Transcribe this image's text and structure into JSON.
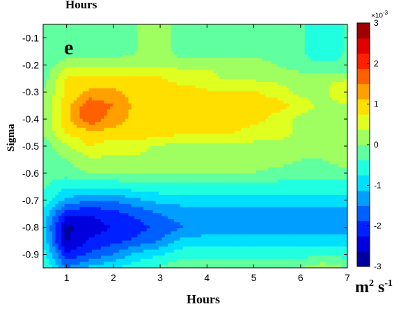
{
  "titles": {
    "top": "Hours",
    "panel_letter": "e"
  },
  "units": {
    "base": "m",
    "exp1": "2",
    "mid": " s",
    "exp2": "-1"
  },
  "colorbar": {
    "exponent_prefix": "×10",
    "exponent": "-3",
    "ticks": [
      "3",
      "2",
      "1",
      "0",
      "-1",
      "-2",
      "-3"
    ],
    "range": [
      -3,
      3
    ]
  },
  "chart_data": {
    "type": "heatmap",
    "xlabel": "Hours",
    "ylabel": "Sigma",
    "xlim": [
      0.5,
      7
    ],
    "ylim": [
      -0.95,
      -0.05
    ],
    "x_ticks": [
      "1",
      "2",
      "3",
      "4",
      "5",
      "6",
      "7"
    ],
    "y_ticks": [
      "-0.1",
      "-0.2",
      "-0.3",
      "-0.4",
      "-0.5",
      "-0.6",
      "-0.7",
      "-0.8",
      "-0.9"
    ],
    "x": [
      0.5,
      1,
      1.5,
      2,
      2.5,
      3,
      3.5,
      4,
      4.5,
      5,
      5.5,
      6,
      6.5,
      7
    ],
    "y": [
      -0.05,
      -0.1,
      -0.15,
      -0.2,
      -0.25,
      -0.3,
      -0.35,
      -0.4,
      -0.45,
      -0.5,
      -0.55,
      -0.6,
      -0.65,
      -0.7,
      -0.75,
      -0.8,
      -0.85,
      -0.9,
      -0.95
    ],
    "z_scale": "×10^-3",
    "z": [
      [
        -0.3,
        -0.3,
        -0.3,
        -0.3,
        0.0,
        0.3,
        -0.3,
        -0.3,
        -0.3,
        -0.3,
        -0.3,
        -0.3,
        -0.7,
        -0.3
      ],
      [
        -0.3,
        -0.3,
        -0.3,
        -0.3,
        0.0,
        0.3,
        -0.3,
        -0.3,
        -0.3,
        -0.3,
        -0.3,
        -0.3,
        -0.7,
        -0.3
      ],
      [
        -0.3,
        -0.3,
        -0.3,
        -0.3,
        0.0,
        0.3,
        -0.3,
        -0.3,
        -0.3,
        -0.3,
        -0.3,
        -0.3,
        -0.7,
        -0.3
      ],
      [
        -0.3,
        0.3,
        0.3,
        0.3,
        0.3,
        0.3,
        0.3,
        0.3,
        0.3,
        0.3,
        0.0,
        -0.3,
        -0.3,
        -0.3
      ],
      [
        -0.2,
        0.8,
        0.8,
        0.8,
        0.8,
        0.8,
        0.5,
        0.5,
        0.3,
        0.3,
        0.3,
        0.3,
        0.3,
        0.3
      ],
      [
        0.0,
        0.8,
        1.2,
        1.2,
        1.0,
        1.0,
        1.0,
        0.8,
        0.8,
        0.8,
        0.5,
        0.3,
        0.3,
        0.8
      ],
      [
        0.0,
        1.0,
        1.8,
        1.5,
        1.0,
        1.0,
        1.0,
        1.0,
        1.0,
        1.0,
        1.0,
        0.5,
        0.3,
        0.3
      ],
      [
        0.0,
        1.0,
        1.8,
        1.3,
        1.0,
        1.0,
        1.0,
        1.0,
        1.0,
        1.0,
        0.5,
        0.3,
        0.3,
        0.3
      ],
      [
        0.0,
        0.8,
        1.0,
        1.0,
        1.0,
        1.0,
        0.8,
        0.8,
        0.8,
        0.5,
        0.5,
        0.3,
        0.3,
        0.3
      ],
      [
        -0.2,
        0.3,
        0.8,
        0.5,
        0.5,
        0.3,
        0.3,
        0.3,
        0.3,
        0.3,
        0.3,
        0.3,
        0.3,
        0.3
      ],
      [
        -0.3,
        0.0,
        0.3,
        0.3,
        0.3,
        0.3,
        0.3,
        0.3,
        0.3,
        0.3,
        0.3,
        0.0,
        0.0,
        0.3
      ],
      [
        -0.3,
        -0.2,
        0.0,
        0.0,
        0.0,
        0.0,
        0.0,
        0.0,
        0.0,
        0.0,
        -0.2,
        -0.3,
        -0.3,
        -0.2
      ],
      [
        -0.3,
        -0.7,
        -0.7,
        -0.7,
        -0.5,
        -0.5,
        -0.5,
        -0.5,
        -0.5,
        -0.5,
        -0.5,
        -0.5,
        -0.5,
        -0.5
      ],
      [
        -0.5,
        -1.2,
        -1.5,
        -1.5,
        -1.2,
        -1.0,
        -1.0,
        -1.0,
        -1.0,
        -1.0,
        -1.0,
        -1.0,
        -1.0,
        -1.0
      ],
      [
        -0.8,
        -2.2,
        -2.2,
        -2.0,
        -1.8,
        -1.5,
        -1.3,
        -1.3,
        -1.3,
        -1.3,
        -1.3,
        -1.3,
        -1.3,
        -1.3
      ],
      [
        -1.0,
        -2.7,
        -2.5,
        -2.2,
        -2.0,
        -1.8,
        -1.5,
        -1.3,
        -1.3,
        -1.3,
        -1.3,
        -1.3,
        -1.3,
        -1.3
      ],
      [
        -0.8,
        -2.7,
        -2.2,
        -2.0,
        -1.8,
        -1.5,
        -1.0,
        -1.0,
        -1.0,
        -1.0,
        -1.0,
        -1.0,
        -1.0,
        -1.0
      ],
      [
        -0.5,
        -2.2,
        -1.8,
        -1.5,
        -1.0,
        -0.8,
        -0.5,
        -0.5,
        -0.5,
        -0.5,
        -0.5,
        -0.5,
        -0.5,
        -0.5
      ],
      [
        -0.3,
        -1.5,
        -1.0,
        -0.8,
        -0.5,
        -0.3,
        0.0,
        0.0,
        0.0,
        0.0,
        0.0,
        0.0,
        0.3,
        0.0
      ]
    ]
  }
}
